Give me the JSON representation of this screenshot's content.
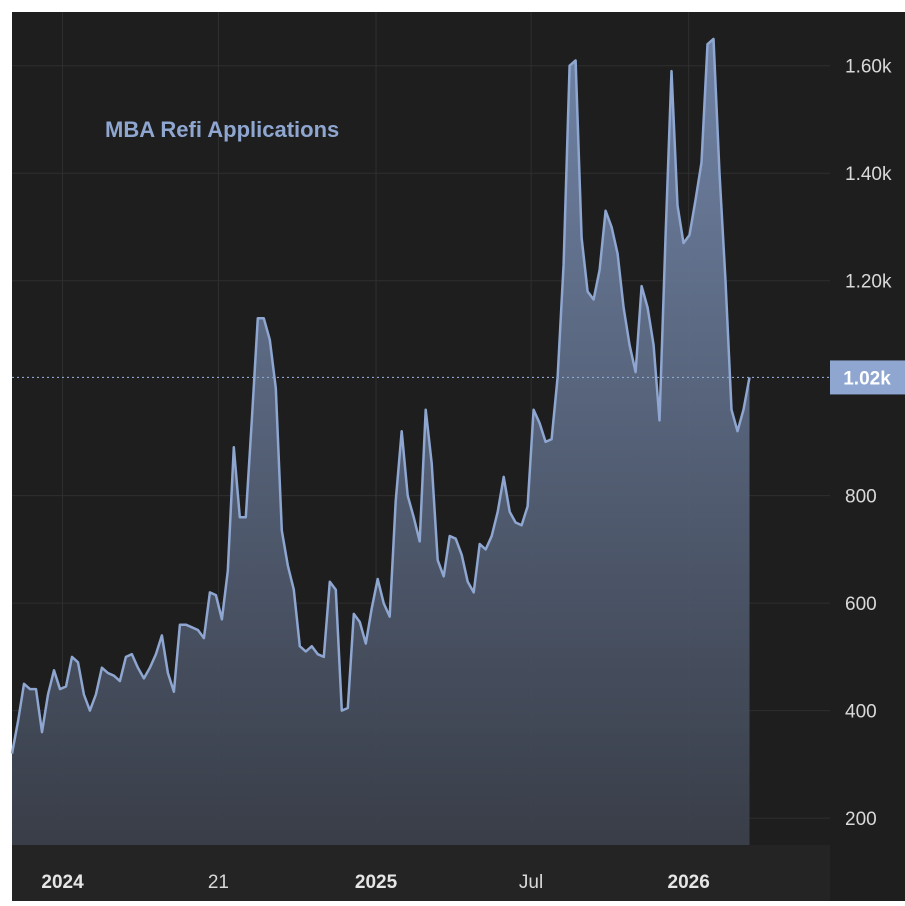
{
  "chart_data": {
    "type": "area",
    "title": "MBA Refi Applications",
    "y_ticks": [
      200,
      400,
      600,
      800,
      1200,
      1400,
      1600
    ],
    "y_tick_labels": [
      "200",
      "400",
      "600",
      "800",
      "1.20k",
      "1.40k",
      "1.60k"
    ],
    "ylim": [
      150,
      1700
    ],
    "x_ticks": [
      {
        "label": "2024",
        "bold": true,
        "date": "2024-01-01"
      },
      {
        "label": "21",
        "bold": false,
        "date": "2024-07-01"
      },
      {
        "label": "2025",
        "bold": true,
        "date": "2025-01-01"
      },
      {
        "label": "Jul",
        "bold": false,
        "date": "2025-07-01"
      },
      {
        "label": "2026",
        "bold": true,
        "date": "2026-01-01"
      }
    ],
    "xlim": [
      "2023-11-03",
      "2026-06-15"
    ],
    "last_value_label": "1.02k",
    "grid": true,
    "series": [
      {
        "color": "#8ea6d0",
        "points": [
          [
            "2023-11-03",
            320
          ],
          [
            "2023-11-10",
            380
          ],
          [
            "2023-11-17",
            450
          ],
          [
            "2023-11-24",
            440
          ],
          [
            "2023-12-01",
            440
          ],
          [
            "2023-12-08",
            360
          ],
          [
            "2023-12-15",
            430
          ],
          [
            "2023-12-22",
            475
          ],
          [
            "2023-12-29",
            440
          ],
          [
            "2024-01-05",
            445
          ],
          [
            "2024-01-12",
            500
          ],
          [
            "2024-01-19",
            490
          ],
          [
            "2024-01-26",
            430
          ],
          [
            "2024-02-02",
            400
          ],
          [
            "2024-02-09",
            430
          ],
          [
            "2024-02-16",
            480
          ],
          [
            "2024-02-23",
            470
          ],
          [
            "2024-03-01",
            465
          ],
          [
            "2024-03-08",
            455
          ],
          [
            "2024-03-15",
            500
          ],
          [
            "2024-03-22",
            505
          ],
          [
            "2024-03-29",
            480
          ],
          [
            "2024-04-05",
            460
          ],
          [
            "2024-04-12",
            480
          ],
          [
            "2024-04-19",
            505
          ],
          [
            "2024-04-26",
            540
          ],
          [
            "2024-05-03",
            470
          ],
          [
            "2024-05-10",
            435
          ],
          [
            "2024-05-17",
            560
          ],
          [
            "2024-05-24",
            560
          ],
          [
            "2024-05-31",
            555
          ],
          [
            "2024-06-07",
            550
          ],
          [
            "2024-06-14",
            535
          ],
          [
            "2024-06-21",
            620
          ],
          [
            "2024-06-28",
            615
          ],
          [
            "2024-07-05",
            570
          ],
          [
            "2024-07-12",
            660
          ],
          [
            "2024-07-19",
            890
          ],
          [
            "2024-07-26",
            760
          ],
          [
            "2024-08-02",
            760
          ],
          [
            "2024-08-09",
            940
          ],
          [
            "2024-08-16",
            1130
          ],
          [
            "2024-08-23",
            1130
          ],
          [
            "2024-08-30",
            1090
          ],
          [
            "2024-09-06",
            1000
          ],
          [
            "2024-09-13",
            735
          ],
          [
            "2024-09-20",
            670
          ],
          [
            "2024-09-27",
            625
          ],
          [
            "2024-10-04",
            520
          ],
          [
            "2024-10-11",
            510
          ],
          [
            "2024-10-18",
            520
          ],
          [
            "2024-10-25",
            505
          ],
          [
            "2024-11-01",
            500
          ],
          [
            "2024-11-08",
            640
          ],
          [
            "2024-11-15",
            625
          ],
          [
            "2024-11-22",
            400
          ],
          [
            "2024-11-29",
            405
          ],
          [
            "2024-12-06",
            580
          ],
          [
            "2024-12-13",
            565
          ],
          [
            "2024-12-20",
            525
          ],
          [
            "2024-12-27",
            590
          ],
          [
            "2025-01-03",
            645
          ],
          [
            "2025-01-10",
            600
          ],
          [
            "2025-01-17",
            575
          ],
          [
            "2025-01-24",
            790
          ],
          [
            "2025-01-31",
            920
          ],
          [
            "2025-02-07",
            800
          ],
          [
            "2025-02-14",
            760
          ],
          [
            "2025-02-21",
            715
          ],
          [
            "2025-02-28",
            960
          ],
          [
            "2025-03-07",
            860
          ],
          [
            "2025-03-14",
            680
          ],
          [
            "2025-03-21",
            650
          ],
          [
            "2025-03-28",
            725
          ],
          [
            "2025-04-04",
            720
          ],
          [
            "2025-04-11",
            690
          ],
          [
            "2025-04-18",
            640
          ],
          [
            "2025-04-25",
            620
          ],
          [
            "2025-05-02",
            710
          ],
          [
            "2025-05-09",
            700
          ],
          [
            "2025-05-16",
            725
          ],
          [
            "2025-05-23",
            770
          ],
          [
            "2025-05-30",
            835
          ],
          [
            "2025-06-06",
            770
          ],
          [
            "2025-06-13",
            750
          ],
          [
            "2025-06-20",
            745
          ],
          [
            "2025-06-27",
            780
          ],
          [
            "2025-07-04",
            960
          ],
          [
            "2025-07-11",
            935
          ],
          [
            "2025-07-18",
            900
          ],
          [
            "2025-07-25",
            905
          ],
          [
            "2025-08-01",
            1020
          ],
          [
            "2025-08-08",
            1230
          ],
          [
            "2025-08-15",
            1600
          ],
          [
            "2025-08-22",
            1610
          ],
          [
            "2025-08-29",
            1280
          ],
          [
            "2025-09-05",
            1180
          ],
          [
            "2025-09-12",
            1165
          ],
          [
            "2025-09-19",
            1220
          ],
          [
            "2025-09-26",
            1330
          ],
          [
            "2025-10-03",
            1300
          ],
          [
            "2025-10-10",
            1250
          ],
          [
            "2025-10-17",
            1150
          ],
          [
            "2025-10-24",
            1080
          ],
          [
            "2025-10-31",
            1030
          ],
          [
            "2025-11-07",
            1190
          ],
          [
            "2025-11-14",
            1150
          ],
          [
            "2025-11-21",
            1080
          ],
          [
            "2025-11-28",
            940
          ],
          [
            "2025-12-05",
            1280
          ],
          [
            "2025-12-12",
            1590
          ],
          [
            "2025-12-19",
            1340
          ],
          [
            "2025-12-26",
            1270
          ],
          [
            "2026-01-02",
            1285
          ],
          [
            "2026-01-09",
            1350
          ],
          [
            "2026-01-16",
            1420
          ],
          [
            "2026-01-23",
            1640
          ],
          [
            "2026-01-30",
            1650
          ],
          [
            "2026-02-06",
            1400
          ],
          [
            "2026-02-13",
            1200
          ],
          [
            "2026-02-20",
            960
          ],
          [
            "2026-02-27",
            920
          ],
          [
            "2026-03-06",
            960
          ],
          [
            "2026-03-13",
            1020
          ]
        ]
      }
    ]
  }
}
